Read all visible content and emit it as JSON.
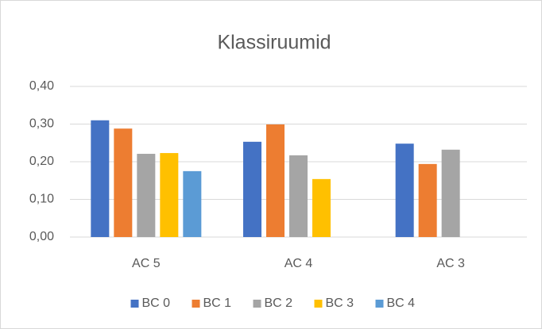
{
  "chart_data": {
    "type": "bar",
    "title": "Klassiruumid",
    "categories": [
      "AC 5",
      "AC 4",
      "AC 3"
    ],
    "series": [
      {
        "name": "BC 0",
        "color": "#4472c4",
        "values": [
          0.31,
          0.253,
          0.248
        ]
      },
      {
        "name": "BC 1",
        "color": "#ed7d31",
        "values": [
          0.288,
          0.299,
          0.194
        ]
      },
      {
        "name": "BC 2",
        "color": "#a5a5a5",
        "values": [
          0.221,
          0.217,
          0.232
        ]
      },
      {
        "name": "BC 3",
        "color": "#ffc000",
        "values": [
          0.223,
          0.154,
          null
        ]
      },
      {
        "name": "BC 4",
        "color": "#5b9bd5",
        "values": [
          0.175,
          null,
          null
        ]
      }
    ],
    "ylim": [
      0,
      0.4
    ],
    "yticks": [
      {
        "value": 0,
        "label": "0,00"
      },
      {
        "value": 0.1,
        "label": "0,10"
      },
      {
        "value": 0.2,
        "label": "0,20"
      },
      {
        "value": 0.3,
        "label": "0,30"
      },
      {
        "value": 0.4,
        "label": "0,40"
      }
    ],
    "grid": true,
    "legend": "bottom"
  }
}
